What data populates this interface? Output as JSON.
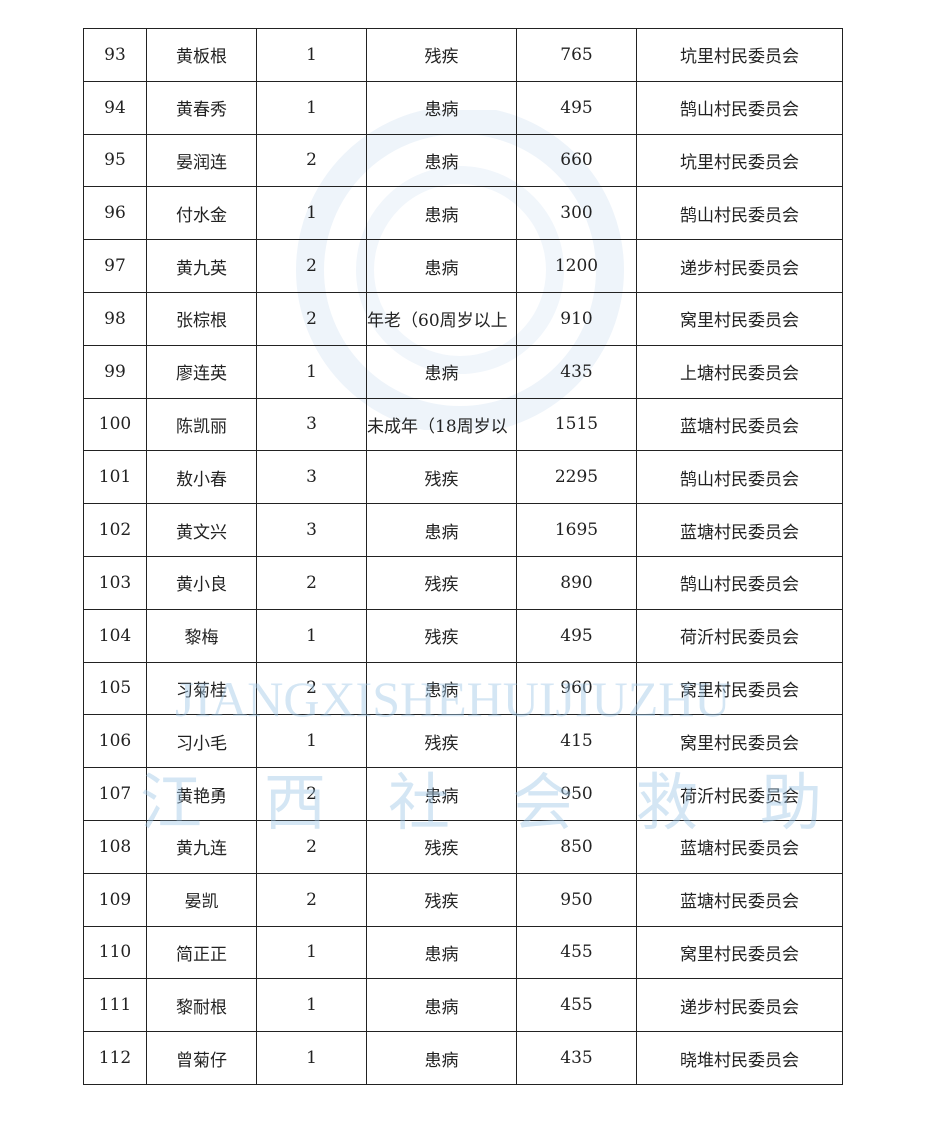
{
  "watermark": {
    "latin": "JIANGXISHEHUIJIUZHU",
    "chinese": "江西社会救助",
    "color": "#a0c8e6"
  },
  "rows": [
    {
      "no": "93",
      "name": "黄板根",
      "count": "1",
      "reason": "残疾",
      "amount": "765",
      "committee": "坑里村民委员会"
    },
    {
      "no": "94",
      "name": "黄春秀",
      "count": "1",
      "reason": "患病",
      "amount": "495",
      "committee": "鹄山村民委员会"
    },
    {
      "no": "95",
      "name": "晏润连",
      "count": "2",
      "reason": "患病",
      "amount": "660",
      "committee": "坑里村民委员会"
    },
    {
      "no": "96",
      "name": "付水金",
      "count": "1",
      "reason": "患病",
      "amount": "300",
      "committee": "鹄山村民委员会"
    },
    {
      "no": "97",
      "name": "黄九英",
      "count": "2",
      "reason": "患病",
      "amount": "1200",
      "committee": "递步村民委员会"
    },
    {
      "no": "98",
      "name": "张棕根",
      "count": "2",
      "reason": "年老（60周岁以上",
      "amount": "910",
      "committee": "窝里村民委员会"
    },
    {
      "no": "99",
      "name": "廖连英",
      "count": "1",
      "reason": "患病",
      "amount": "435",
      "committee": "上塘村民委员会"
    },
    {
      "no": "100",
      "name": "陈凯丽",
      "count": "3",
      "reason": "未成年（18周岁以",
      "amount": "1515",
      "committee": "蓝塘村民委员会"
    },
    {
      "no": "101",
      "name": "敖小春",
      "count": "3",
      "reason": "残疾",
      "amount": "2295",
      "committee": "鹄山村民委员会"
    },
    {
      "no": "102",
      "name": "黄文兴",
      "count": "3",
      "reason": "患病",
      "amount": "1695",
      "committee": "蓝塘村民委员会"
    },
    {
      "no": "103",
      "name": "黄小良",
      "count": "2",
      "reason": "残疾",
      "amount": "890",
      "committee": "鹄山村民委员会"
    },
    {
      "no": "104",
      "name": "黎梅",
      "count": "1",
      "reason": "残疾",
      "amount": "495",
      "committee": "荷沂村民委员会"
    },
    {
      "no": "105",
      "name": "习菊桂",
      "count": "2",
      "reason": "患病",
      "amount": "960",
      "committee": "窝里村民委员会"
    },
    {
      "no": "106",
      "name": "习小毛",
      "count": "1",
      "reason": "残疾",
      "amount": "415",
      "committee": "窝里村民委员会"
    },
    {
      "no": "107",
      "name": "黄艳勇",
      "count": "2",
      "reason": "患病",
      "amount": "950",
      "committee": "荷沂村民委员会"
    },
    {
      "no": "108",
      "name": "黄九连",
      "count": "2",
      "reason": "残疾",
      "amount": "850",
      "committee": "蓝塘村民委员会"
    },
    {
      "no": "109",
      "name": "晏凯",
      "count": "2",
      "reason": "残疾",
      "amount": "950",
      "committee": "蓝塘村民委员会"
    },
    {
      "no": "110",
      "name": "简正正",
      "count": "1",
      "reason": "患病",
      "amount": "455",
      "committee": "窝里村民委员会"
    },
    {
      "no": "111",
      "name": "黎耐根",
      "count": "1",
      "reason": "患病",
      "amount": "455",
      "committee": "递步村民委员会"
    },
    {
      "no": "112",
      "name": "曾菊仔",
      "count": "1",
      "reason": "患病",
      "amount": "435",
      "committee": "晓堆村民委员会"
    }
  ]
}
